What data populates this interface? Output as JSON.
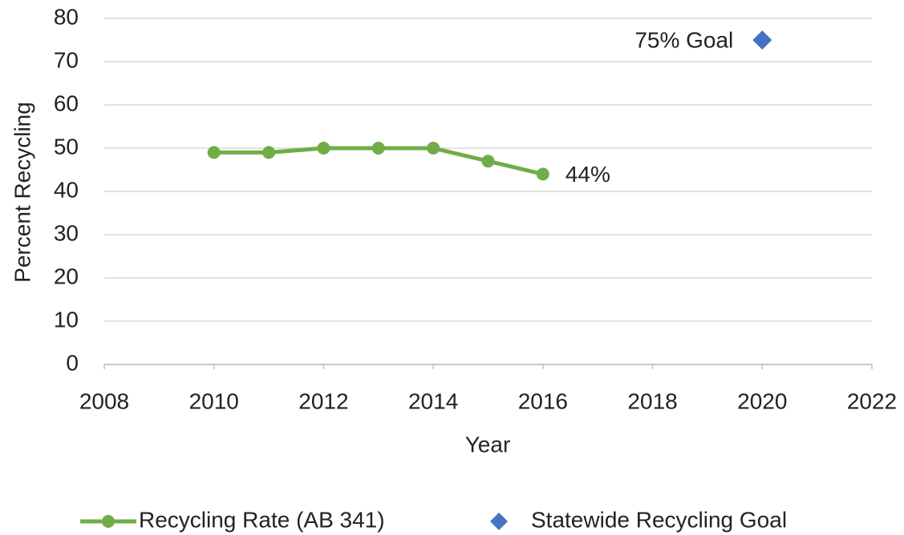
{
  "chart_data": {
    "type": "line",
    "xlabel": "Year",
    "ylabel": "Percent Recycling",
    "xlim": [
      2008,
      2022
    ],
    "xticks": [
      2008,
      2010,
      2012,
      2014,
      2016,
      2018,
      2020,
      2022
    ],
    "ylim": [
      0,
      80
    ],
    "yticks": [
      0,
      10,
      20,
      30,
      40,
      50,
      60,
      70,
      80
    ],
    "grid": true,
    "legend": "bottom",
    "series": [
      {
        "name": "Recycling Rate (AB 341)",
        "color": "#70ad47",
        "marker": "circle",
        "x": [
          2010,
          2011,
          2012,
          2013,
          2014,
          2015,
          2016
        ],
        "values": [
          49,
          49,
          50,
          50,
          50,
          47,
          44
        ],
        "value_labels": [
          null,
          null,
          null,
          null,
          null,
          null,
          "44%"
        ]
      },
      {
        "name": "Statewide Recycling Goal",
        "color": "#4472c4",
        "marker": "diamond",
        "x": [
          2020
        ],
        "values": [
          75
        ],
        "value_labels": [
          "75% Goal"
        ]
      }
    ]
  }
}
